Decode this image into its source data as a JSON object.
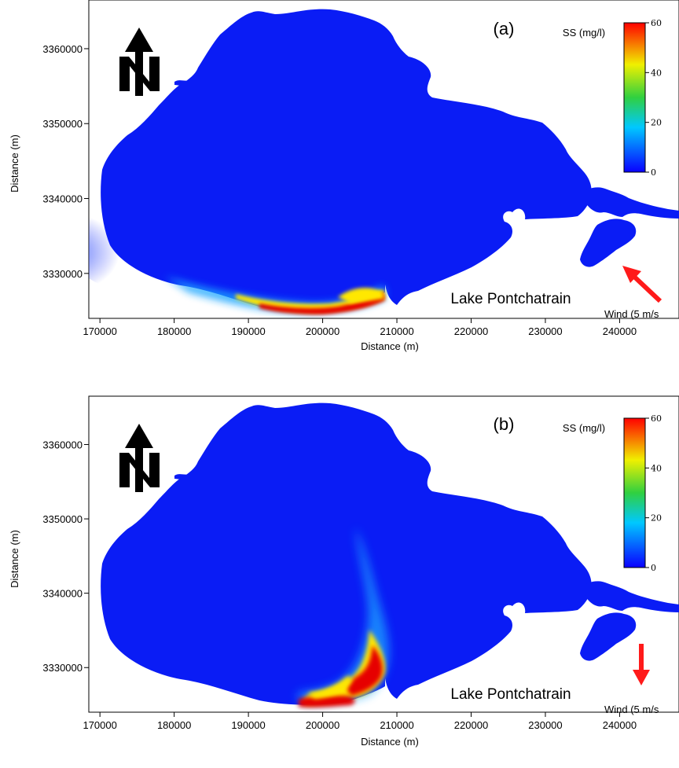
{
  "colors": {
    "water": "#0a1cf5",
    "plume_low": "#1ea6ff",
    "plume_mid": "#ffe800",
    "plume_high": "#e60000",
    "wind_arrow": "#ff1a1a",
    "colorbar": [
      "#0a00ff",
      "#00c8ff",
      "#30d040",
      "#f0f000",
      "#ff0000"
    ]
  },
  "map_axes": {
    "xlabel": "Distance (m)",
    "ylabel": "Distance (m)",
    "x_ticks": [
      170000,
      180000,
      190000,
      200000,
      210000,
      220000,
      230000,
      240000
    ],
    "y_ticks": [
      3330000,
      3340000,
      3350000,
      3360000
    ],
    "xlim": [
      168500,
      248000
    ],
    "ylim": [
      3324000,
      3366500
    ]
  },
  "colorbar": {
    "title": "SS (mg/l)",
    "ticks": [
      "0",
      "20",
      "40",
      "60"
    ],
    "range": [
      0,
      60
    ]
  },
  "panels": [
    {
      "label": "(a)",
      "place_label": "Lake Pontchatrain",
      "wind_label": "Wind (5 m/s",
      "wind_direction": "from-southeast",
      "north_arrow_icon": "north-arrow-icon"
    },
    {
      "label": "(b)",
      "place_label": "Lake Pontchatrain",
      "wind_label": "Wind (5 m/s",
      "wind_direction": "from-north",
      "north_arrow_icon": "north-arrow-icon"
    }
  ]
}
